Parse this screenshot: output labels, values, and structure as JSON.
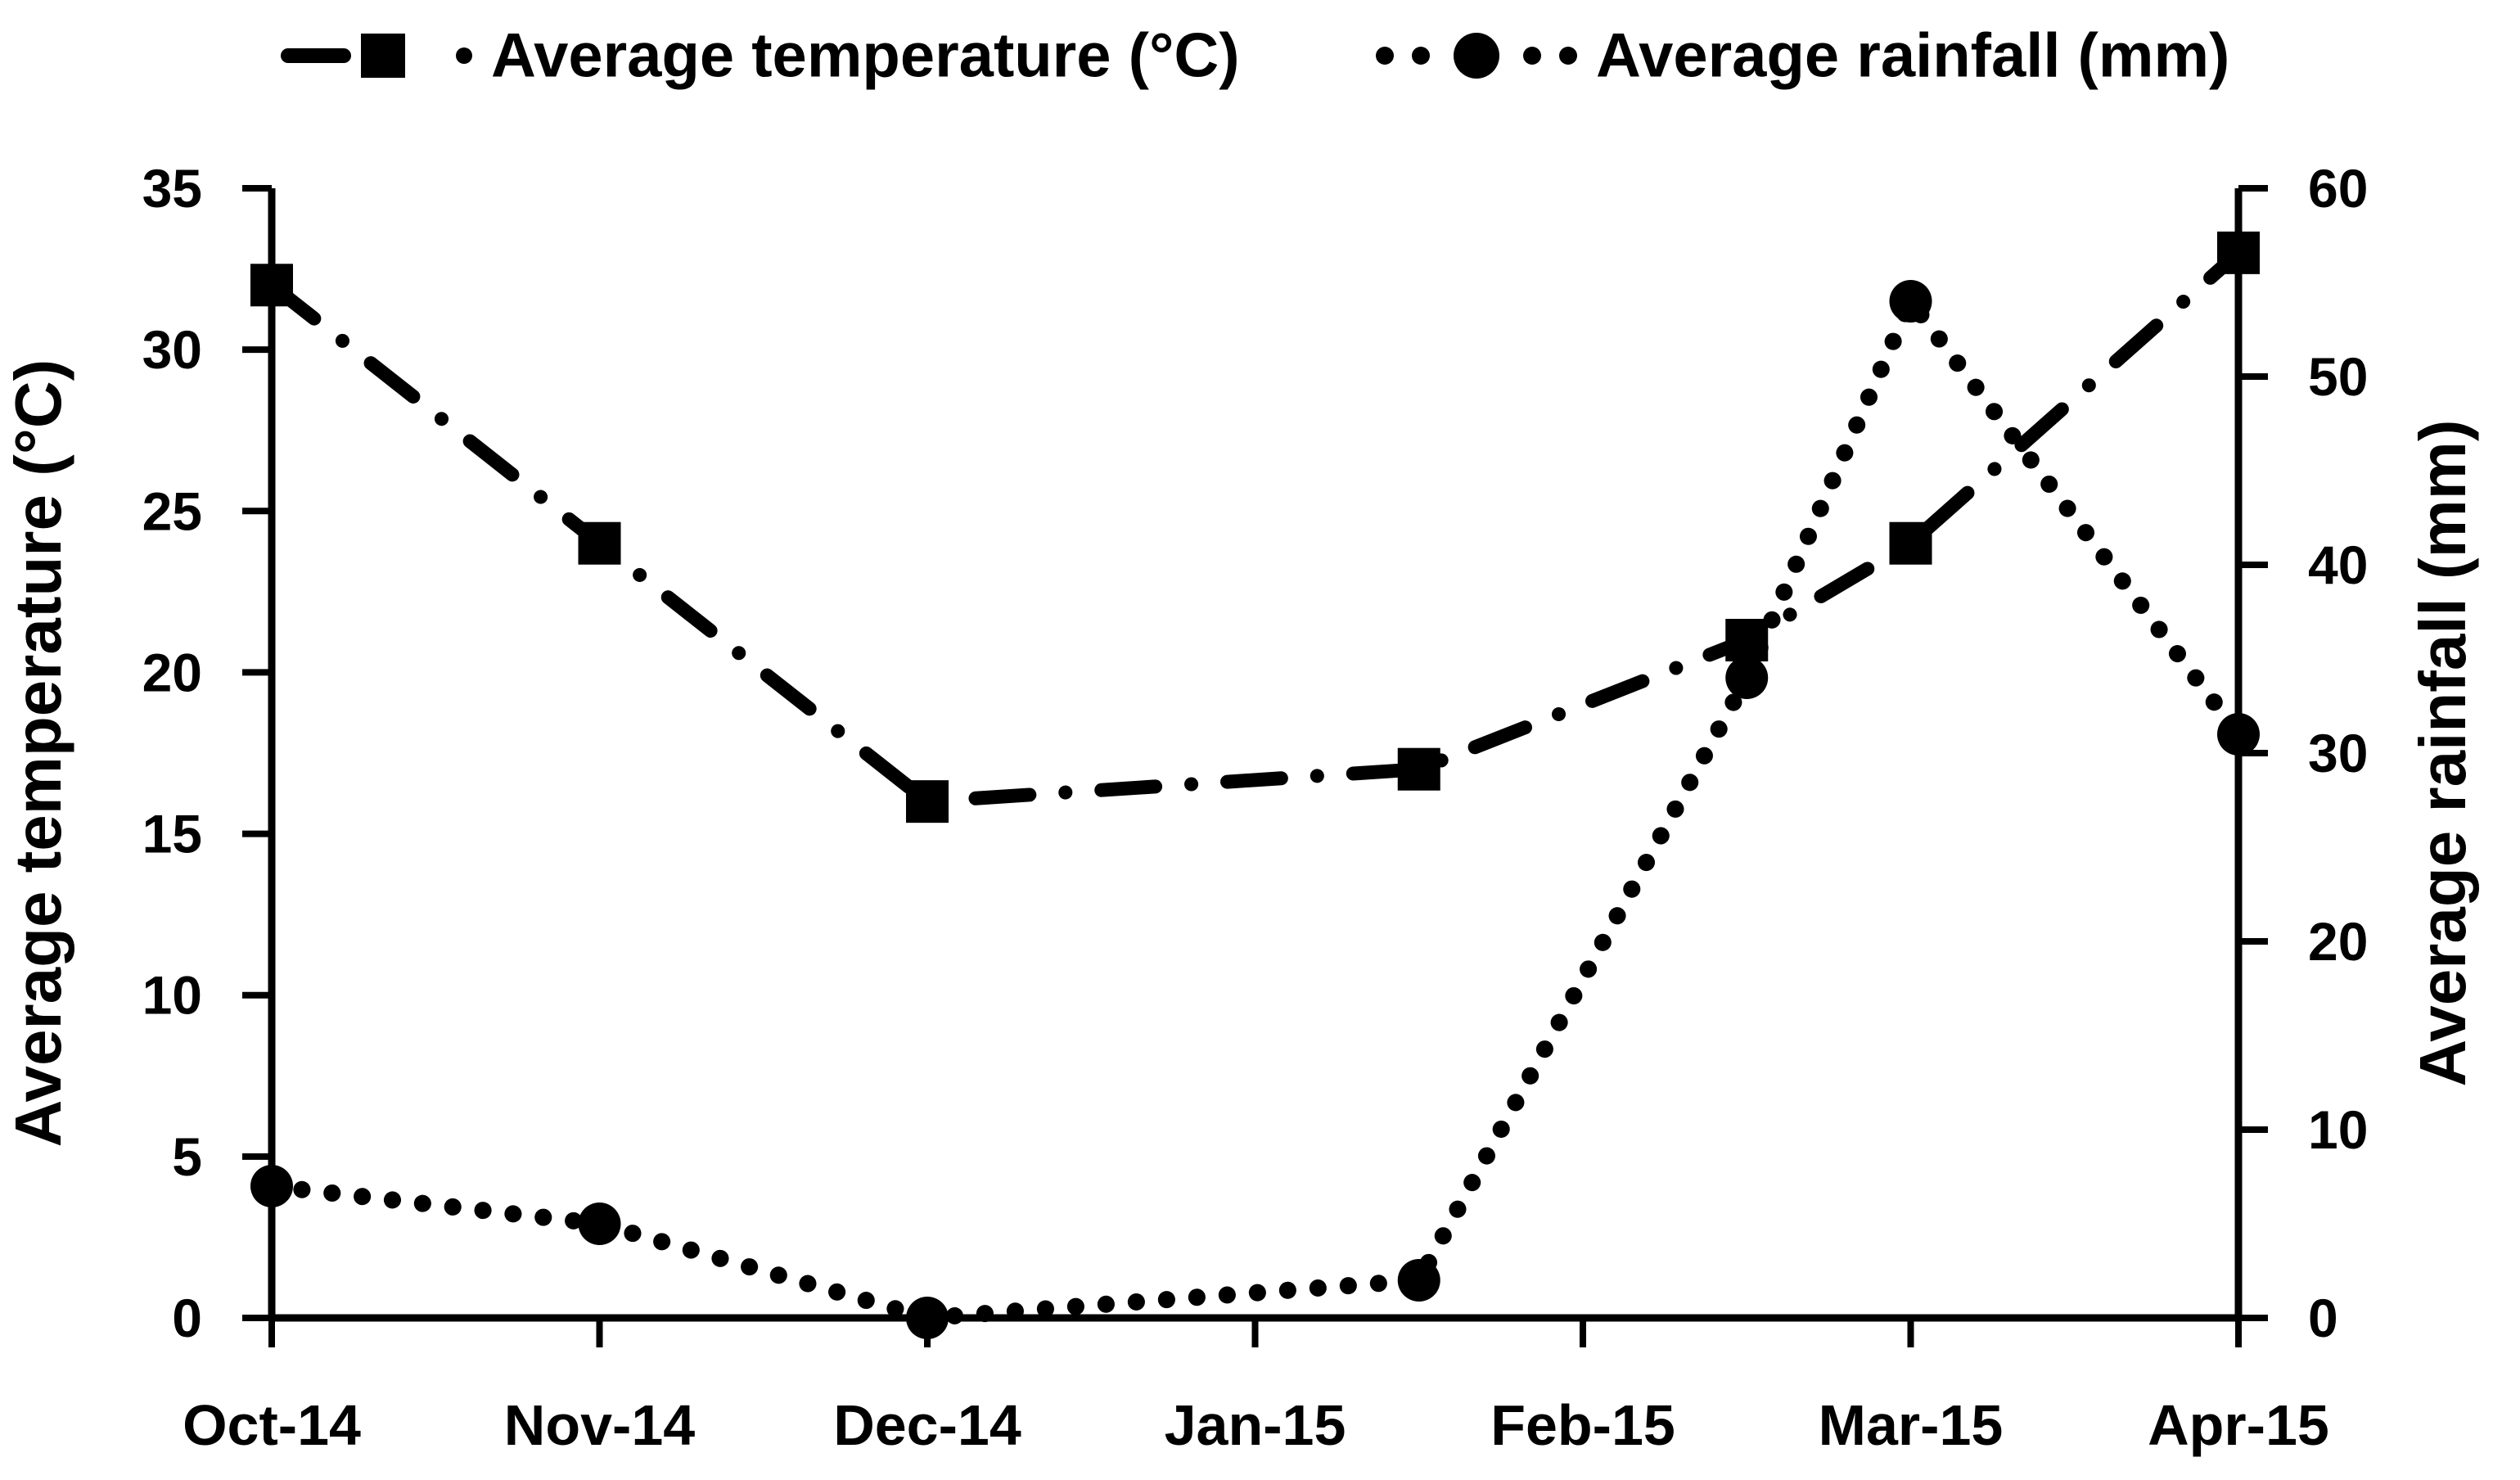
{
  "chart_data": {
    "type": "line",
    "title": "",
    "x_tick_labels": [
      "Oct-14",
      "Nov-14",
      "Dec-14",
      "Jan-15",
      "Feb-15",
      "Mar-15",
      "Apr-15"
    ],
    "x_positions_months": [
      0,
      1,
      2,
      3.5,
      4.5,
      5,
      6
    ],
    "series": [
      {
        "name": "Average temperature (°C)",
        "axis": "left",
        "marker": "square",
        "line_style": "dash-dot",
        "values": [
          32,
          24,
          16,
          17,
          21,
          24,
          33
        ]
      },
      {
        "name": "Average rainfall (mm)",
        "axis": "right",
        "marker": "circle",
        "line_style": "dotted",
        "values": [
          7,
          5,
          0,
          2,
          34,
          54,
          31
        ]
      }
    ],
    "left_axis": {
      "label": "Average temperature (°C)",
      "min": 0,
      "max": 35,
      "tick_step": 5
    },
    "right_axis": {
      "label": "Average rainfall (mm)",
      "min": 0,
      "max": 60,
      "tick_step": 10
    },
    "legend_position": "top",
    "grid": false,
    "colors": {
      "foreground": "#000000",
      "background": "#ffffff"
    }
  }
}
